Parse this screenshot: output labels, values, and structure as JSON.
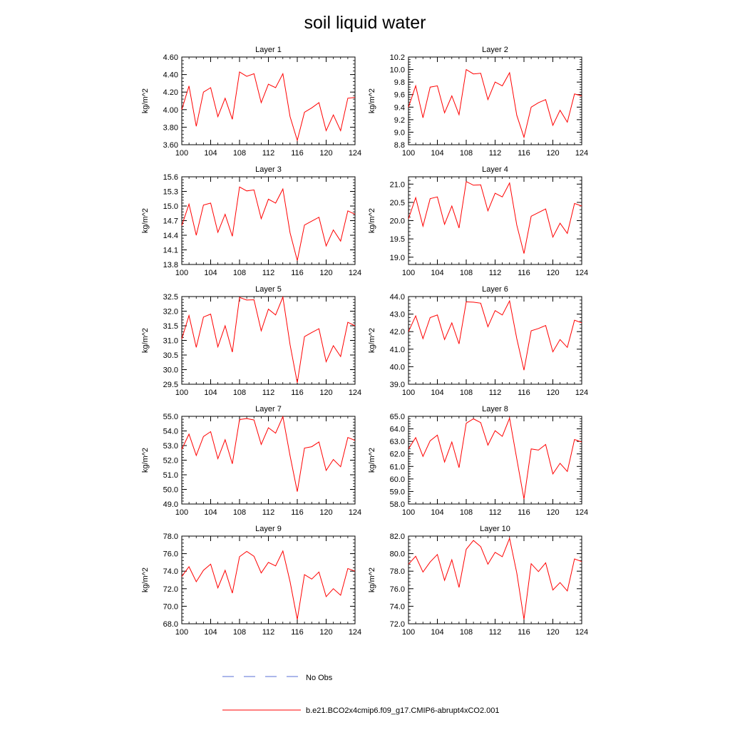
{
  "title": "soil liquid water",
  "legend": {
    "obs_label": "No Obs",
    "obs_color": "#5a6fd6",
    "model_label": "b.e21.BCO2x4cmip6.f09_g17.CMIP6-abrupt4xCO2.001",
    "model_color": "#ff0000"
  },
  "chart_data": [
    {
      "type": "line",
      "title": "Layer 1",
      "ylabel": "kg/m^2",
      "xlim": [
        100,
        124
      ],
      "xticks": [
        "100",
        "104",
        "108",
        "112",
        "116",
        "120",
        "124"
      ],
      "ylim": [
        3.6,
        4.6
      ],
      "yticks": [
        "3.60",
        "3.80",
        "4.00",
        "4.20",
        "4.40",
        "4.60"
      ],
      "x": [
        100,
        101,
        102,
        103,
        104,
        105,
        106,
        107,
        108,
        109,
        110,
        111,
        112,
        113,
        114,
        115,
        116,
        117,
        118,
        119,
        120,
        121,
        122,
        123,
        124
      ],
      "values": [
        4.0,
        4.27,
        3.81,
        4.2,
        4.25,
        3.92,
        4.13,
        3.89,
        4.43,
        4.38,
        4.41,
        4.08,
        4.29,
        4.25,
        4.41,
        3.92,
        3.65,
        3.97,
        4.02,
        4.08,
        3.76,
        3.94,
        3.76,
        4.13,
        4.14
      ]
    },
    {
      "type": "line",
      "title": "Layer 2",
      "ylabel": "kg/m^2",
      "xlim": [
        100,
        124
      ],
      "xticks": [
        "100",
        "104",
        "108",
        "112",
        "116",
        "120",
        "124"
      ],
      "ylim": [
        8.8,
        10.2
      ],
      "yticks": [
        "8.8",
        "9.0",
        "9.2",
        "9.4",
        "9.6",
        "9.8",
        "10.0",
        "10.2"
      ],
      "x": [
        100,
        101,
        102,
        103,
        104,
        105,
        106,
        107,
        108,
        109,
        110,
        111,
        112,
        113,
        114,
        115,
        116,
        117,
        118,
        119,
        120,
        121,
        122,
        123,
        124
      ],
      "values": [
        9.4,
        9.74,
        9.23,
        9.72,
        9.74,
        9.31,
        9.58,
        9.28,
        10.0,
        9.93,
        9.94,
        9.52,
        9.8,
        9.74,
        9.95,
        9.27,
        8.92,
        9.4,
        9.47,
        9.52,
        9.11,
        9.35,
        9.16,
        9.61,
        9.58
      ]
    },
    {
      "type": "line",
      "title": "Layer 3",
      "ylabel": "kg/m^2",
      "xlim": [
        100,
        124
      ],
      "xticks": [
        "100",
        "104",
        "108",
        "112",
        "116",
        "120",
        "124"
      ],
      "ylim": [
        13.8,
        15.6
      ],
      "yticks": [
        "13.8",
        "14.1",
        "14.4",
        "14.7",
        "15.0",
        "15.3",
        "15.6"
      ],
      "x": [
        100,
        101,
        102,
        103,
        104,
        105,
        106,
        107,
        108,
        109,
        110,
        111,
        112,
        113,
        114,
        115,
        116,
        117,
        118,
        119,
        120,
        121,
        122,
        123,
        124
      ],
      "values": [
        14.6,
        15.04,
        14.4,
        15.02,
        15.06,
        14.46,
        14.83,
        14.38,
        15.39,
        15.31,
        15.33,
        14.74,
        15.14,
        15.06,
        15.35,
        14.45,
        13.88,
        14.61,
        14.69,
        14.77,
        14.18,
        14.51,
        14.28,
        14.9,
        14.83
      ]
    },
    {
      "type": "line",
      "title": "Layer 4",
      "ylabel": "kg/m^2",
      "xlim": [
        100,
        124
      ],
      "xticks": [
        "100",
        "104",
        "108",
        "112",
        "116",
        "120",
        "124"
      ],
      "ylim": [
        18.8,
        21.2
      ],
      "yticks": [
        "19.0",
        "19.5",
        "20.0",
        "20.5",
        "21.0"
      ],
      "x": [
        100,
        101,
        102,
        103,
        104,
        105,
        106,
        107,
        108,
        109,
        110,
        111,
        112,
        113,
        114,
        115,
        116,
        117,
        118,
        119,
        120,
        121,
        122,
        123,
        124
      ],
      "values": [
        20.05,
        20.63,
        19.85,
        20.6,
        20.65,
        19.9,
        20.4,
        19.8,
        21.07,
        20.97,
        20.98,
        20.27,
        20.75,
        20.65,
        21.03,
        19.88,
        19.1,
        20.12,
        20.22,
        20.32,
        19.55,
        19.93,
        19.65,
        20.47,
        20.4
      ]
    },
    {
      "type": "line",
      "title": "Layer 5",
      "ylabel": "kg/m^2",
      "xlim": [
        100,
        124
      ],
      "xticks": [
        "100",
        "104",
        "108",
        "112",
        "116",
        "120",
        "124"
      ],
      "ylim": [
        29.5,
        32.5
      ],
      "yticks": [
        "29.5",
        "30.0",
        "30.5",
        "31.0",
        "31.5",
        "32.0",
        "32.5"
      ],
      "x": [
        100,
        101,
        102,
        103,
        104,
        105,
        106,
        107,
        108,
        109,
        110,
        111,
        112,
        113,
        114,
        115,
        116,
        117,
        118,
        119,
        120,
        121,
        122,
        123,
        124
      ],
      "values": [
        31.05,
        31.85,
        30.76,
        31.8,
        31.9,
        30.78,
        31.5,
        30.6,
        32.47,
        32.38,
        32.39,
        31.33,
        32.07,
        31.87,
        32.48,
        30.85,
        29.55,
        31.13,
        31.27,
        31.4,
        30.27,
        30.82,
        30.45,
        31.62,
        31.5
      ]
    },
    {
      "type": "line",
      "title": "Layer 6",
      "ylabel": "kg/m^2",
      "xlim": [
        100,
        124
      ],
      "xticks": [
        "100",
        "104",
        "108",
        "112",
        "116",
        "120",
        "124"
      ],
      "ylim": [
        39.0,
        44.0
      ],
      "yticks": [
        "39.0",
        "40.0",
        "41.0",
        "42.0",
        "43.0",
        "44.0"
      ],
      "x": [
        100,
        101,
        102,
        103,
        104,
        105,
        106,
        107,
        108,
        109,
        110,
        111,
        112,
        113,
        114,
        115,
        116,
        117,
        118,
        119,
        120,
        121,
        122,
        123,
        124
      ],
      "values": [
        42.0,
        42.9,
        41.6,
        42.8,
        42.95,
        41.55,
        42.5,
        41.3,
        43.7,
        43.68,
        43.62,
        42.28,
        43.2,
        42.95,
        43.75,
        41.6,
        39.8,
        42.05,
        42.18,
        42.35,
        40.85,
        41.55,
        41.1,
        42.65,
        42.5
      ]
    },
    {
      "type": "line",
      "title": "Layer 7",
      "ylabel": "kg/m^2",
      "xlim": [
        100,
        124
      ],
      "xticks": [
        "100",
        "104",
        "108",
        "112",
        "116",
        "120",
        "124"
      ],
      "ylim": [
        49.0,
        55.0
      ],
      "yticks": [
        "49.0",
        "50.0",
        "51.0",
        "52.0",
        "53.0",
        "54.0",
        "55.0"
      ],
      "x": [
        100,
        101,
        102,
        103,
        104,
        105,
        106,
        107,
        108,
        109,
        110,
        111,
        112,
        113,
        114,
        115,
        116,
        117,
        118,
        119,
        120,
        121,
        122,
        123,
        124
      ],
      "values": [
        52.75,
        53.78,
        52.32,
        53.62,
        53.95,
        52.1,
        53.4,
        51.75,
        54.78,
        54.85,
        54.75,
        53.08,
        54.22,
        53.85,
        54.98,
        52.3,
        49.85,
        52.83,
        52.92,
        53.25,
        51.3,
        52.05,
        51.55,
        53.55,
        53.35
      ]
    },
    {
      "type": "line",
      "title": "Layer 8",
      "ylabel": "kg/m^2",
      "xlim": [
        100,
        124
      ],
      "xticks": [
        "100",
        "104",
        "108",
        "112",
        "116",
        "120",
        "124"
      ],
      "ylim": [
        58.0,
        65.0
      ],
      "yticks": [
        "58.0",
        "59.0",
        "60.0",
        "61.0",
        "62.0",
        "63.0",
        "64.0",
        "65.0"
      ],
      "x": [
        100,
        101,
        102,
        103,
        104,
        105,
        106,
        107,
        108,
        109,
        110,
        111,
        112,
        113,
        114,
        115,
        116,
        117,
        118,
        119,
        120,
        121,
        122,
        123,
        124
      ],
      "values": [
        62.4,
        63.3,
        61.8,
        63.05,
        63.5,
        61.35,
        62.95,
        60.9,
        64.45,
        64.8,
        64.5,
        62.7,
        63.85,
        63.4,
        64.85,
        61.6,
        58.4,
        62.4,
        62.3,
        62.75,
        60.4,
        61.25,
        60.6,
        63.15,
        62.95
      ]
    },
    {
      "type": "line",
      "title": "Layer 9",
      "ylabel": "kg/m^2",
      "xlim": [
        100,
        124
      ],
      "xticks": [
        "100",
        "104",
        "108",
        "112",
        "116",
        "120",
        "124"
      ],
      "ylim": [
        68.0,
        78.0
      ],
      "yticks": [
        "68.0",
        "70.0",
        "72.0",
        "74.0",
        "76.0",
        "78.0"
      ],
      "x": [
        100,
        101,
        102,
        103,
        104,
        105,
        106,
        107,
        108,
        109,
        110,
        111,
        112,
        113,
        114,
        115,
        116,
        117,
        118,
        119,
        120,
        121,
        122,
        123,
        124
      ],
      "values": [
        73.4,
        74.5,
        72.8,
        74.1,
        74.8,
        72.1,
        74.1,
        71.5,
        75.65,
        76.25,
        75.7,
        73.8,
        75.0,
        74.6,
        76.3,
        72.8,
        68.5,
        73.6,
        73.1,
        73.9,
        71.1,
        72.0,
        71.25,
        74.3,
        74.0
      ]
    },
    {
      "type": "line",
      "title": "Layer 10",
      "ylabel": "kg/m^2",
      "xlim": [
        100,
        124
      ],
      "xticks": [
        "100",
        "104",
        "108",
        "112",
        "116",
        "120",
        "124"
      ],
      "ylim": [
        72.0,
        82.0
      ],
      "yticks": [
        "72.0",
        "74.0",
        "76.0",
        "78.0",
        "80.0",
        "82.0"
      ],
      "x": [
        100,
        101,
        102,
        103,
        104,
        105,
        106,
        107,
        108,
        109,
        110,
        111,
        112,
        113,
        114,
        115,
        116,
        117,
        118,
        119,
        120,
        121,
        122,
        123,
        124
      ],
      "values": [
        78.8,
        79.7,
        77.9,
        79.05,
        79.9,
        76.95,
        79.3,
        76.15,
        80.5,
        81.5,
        80.8,
        78.8,
        80.15,
        79.65,
        81.75,
        77.8,
        72.5,
        78.85,
        77.95,
        78.95,
        75.85,
        76.7,
        75.75,
        79.4,
        79.1
      ]
    }
  ]
}
